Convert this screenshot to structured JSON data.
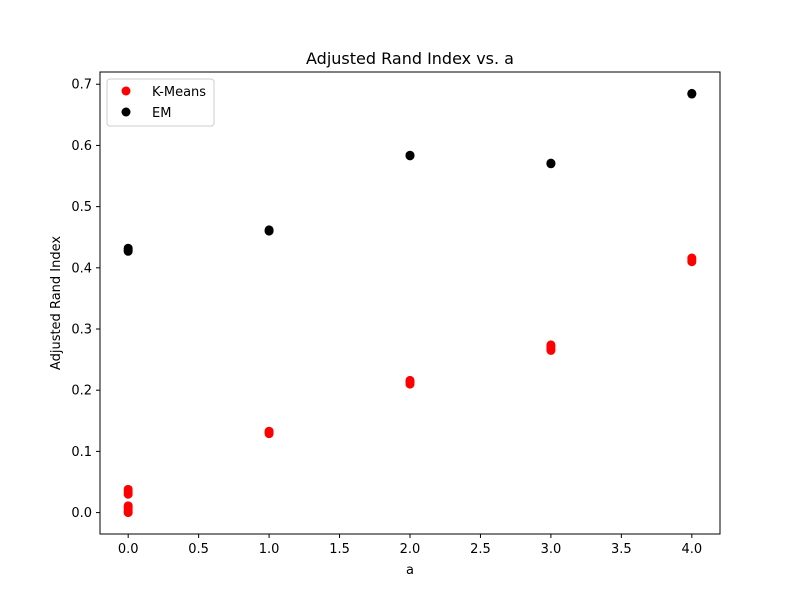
{
  "chart_data": {
    "type": "scatter",
    "title": "Adjusted Rand Index vs. a",
    "xlabel": "a",
    "ylabel": "Adjusted Rand Index",
    "xlim": [
      -0.2,
      4.2
    ],
    "ylim": [
      -0.035,
      0.72
    ],
    "xticks": [
      0.0,
      0.5,
      1.0,
      1.5,
      2.0,
      2.5,
      3.0,
      3.5,
      4.0
    ],
    "xtick_labels": [
      "0.0",
      "0.5",
      "1.0",
      "1.5",
      "2.0",
      "2.5",
      "3.0",
      "3.5",
      "4.0"
    ],
    "yticks": [
      0.0,
      0.1,
      0.2,
      0.3,
      0.4,
      0.5,
      0.6,
      0.7
    ],
    "ytick_labels": [
      "0.0",
      "0.1",
      "0.2",
      "0.3",
      "0.4",
      "0.5",
      "0.6",
      "0.7"
    ],
    "grid": false,
    "legend_position": "top-left",
    "series": [
      {
        "name": "K-Means",
        "color": "#ff0000",
        "points": [
          {
            "x": 0,
            "y": 0.0
          },
          {
            "x": 0,
            "y": 0.003
          },
          {
            "x": 0,
            "y": 0.008
          },
          {
            "x": 0,
            "y": 0.011
          },
          {
            "x": 0,
            "y": 0.03
          },
          {
            "x": 0,
            "y": 0.034
          },
          {
            "x": 0,
            "y": 0.038
          },
          {
            "x": 1,
            "y": 0.129
          },
          {
            "x": 1,
            "y": 0.131
          },
          {
            "x": 1,
            "y": 0.133
          },
          {
            "x": 2,
            "y": 0.21
          },
          {
            "x": 2,
            "y": 0.213
          },
          {
            "x": 2,
            "y": 0.216
          },
          {
            "x": 3,
            "y": 0.265
          },
          {
            "x": 3,
            "y": 0.268
          },
          {
            "x": 3,
            "y": 0.272
          },
          {
            "x": 3,
            "y": 0.274
          },
          {
            "x": 4,
            "y": 0.41
          },
          {
            "x": 4,
            "y": 0.413
          },
          {
            "x": 4,
            "y": 0.416
          }
        ]
      },
      {
        "name": "EM",
        "color": "#000000",
        "points": [
          {
            "x": 0,
            "y": 0.427
          },
          {
            "x": 0,
            "y": 0.429
          },
          {
            "x": 0,
            "y": 0.432
          },
          {
            "x": 1,
            "y": 0.46
          },
          {
            "x": 1,
            "y": 0.462
          },
          {
            "x": 2,
            "y": 0.583
          },
          {
            "x": 2,
            "y": 0.584
          },
          {
            "x": 3,
            "y": 0.57
          },
          {
            "x": 3,
            "y": 0.571
          },
          {
            "x": 4,
            "y": 0.684
          },
          {
            "x": 4,
            "y": 0.685
          }
        ]
      }
    ]
  }
}
